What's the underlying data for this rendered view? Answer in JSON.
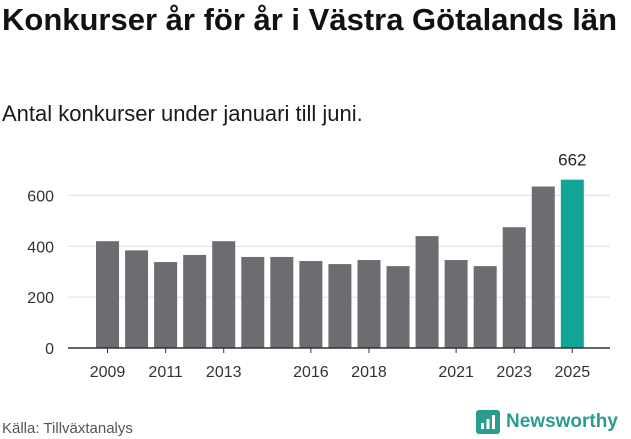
{
  "header": {
    "title": "Konkurser år för år i Västra Götalands län",
    "subtitle": "Antal konkurser under januari till juni."
  },
  "footer": {
    "source": "Källa: Tillväxtanalys",
    "brand": "Newsworthy"
  },
  "colors": {
    "bar": "#6d6c71",
    "highlight": "#12a597",
    "grid": "#dddddd",
    "axis_text": "#333333",
    "brand": "#2a9d8f"
  },
  "chart_data": {
    "type": "bar",
    "title": "Konkurser år för år i Västra Götalands län",
    "subtitle": "Antal konkurser under januari till juni.",
    "categories": [
      "2009",
      "2010",
      "2011",
      "2012",
      "2013",
      "2014",
      "2015",
      "2016",
      "2017",
      "2018",
      "2019",
      "2020",
      "2021",
      "2022",
      "2023",
      "2024",
      "2025"
    ],
    "values": [
      420,
      384,
      338,
      366,
      420,
      358,
      358,
      342,
      330,
      346,
      322,
      440,
      346,
      322,
      475,
      635,
      662
    ],
    "highlight_index": 16,
    "data_labels": [
      {
        "index": 16,
        "text": "662"
      }
    ],
    "x_tick_labels": [
      "2009",
      "2011",
      "2013",
      "2016",
      "2018",
      "2021",
      "2023",
      "2025"
    ],
    "y_ticks": [
      0,
      200,
      400,
      600
    ],
    "ylim": [
      0,
      700
    ],
    "grid": true,
    "xlabel": "",
    "ylabel": ""
  }
}
